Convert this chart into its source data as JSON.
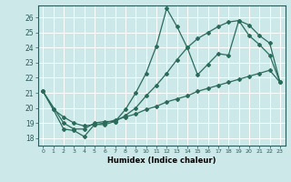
{
  "xlabel": "Humidex (Indice chaleur)",
  "bg_color": "#cce8e8",
  "grid_color": "#ffffff",
  "line_color": "#2a6b5a",
  "xlim": [
    -0.5,
    23.5
  ],
  "ylim": [
    17.5,
    26.8
  ],
  "xticks": [
    0,
    1,
    2,
    3,
    4,
    5,
    6,
    7,
    8,
    9,
    10,
    11,
    12,
    13,
    14,
    15,
    16,
    17,
    18,
    19,
    20,
    21,
    22,
    23
  ],
  "yticks": [
    18,
    19,
    20,
    21,
    22,
    23,
    24,
    25,
    26
  ],
  "line1_x": [
    0,
    1,
    2,
    3,
    4,
    5,
    6,
    7,
    8,
    9,
    10,
    11,
    12,
    13,
    14,
    15,
    16,
    17,
    18,
    19,
    20,
    21,
    22,
    23
  ],
  "line1_y": [
    21.1,
    19.9,
    18.6,
    18.5,
    18.1,
    18.9,
    18.9,
    19.1,
    19.9,
    21.0,
    22.3,
    24.1,
    26.6,
    25.4,
    24.0,
    22.2,
    22.9,
    23.6,
    23.5,
    25.8,
    24.8,
    24.2,
    23.5,
    21.7
  ],
  "line2_x": [
    0,
    2,
    3,
    4,
    5,
    6,
    7,
    8,
    9,
    10,
    11,
    12,
    13,
    14,
    15,
    16,
    17,
    18,
    19,
    20,
    21,
    22,
    23
  ],
  "line2_y": [
    21.1,
    19.0,
    18.6,
    18.6,
    19.0,
    19.1,
    19.1,
    19.5,
    20.0,
    20.8,
    21.5,
    22.3,
    23.2,
    24.0,
    24.6,
    25.0,
    25.4,
    25.7,
    25.8,
    25.5,
    24.8,
    24.3,
    21.7
  ],
  "line3_x": [
    0,
    1,
    2,
    3,
    4,
    5,
    6,
    7,
    8,
    9,
    10,
    11,
    12,
    13,
    14,
    15,
    16,
    17,
    18,
    19,
    20,
    21,
    22,
    23
  ],
  "line3_y": [
    21.1,
    19.9,
    19.4,
    19.0,
    18.8,
    18.9,
    19.0,
    19.2,
    19.4,
    19.6,
    19.9,
    20.1,
    20.4,
    20.6,
    20.8,
    21.1,
    21.3,
    21.5,
    21.7,
    21.9,
    22.1,
    22.3,
    22.5,
    21.7
  ]
}
